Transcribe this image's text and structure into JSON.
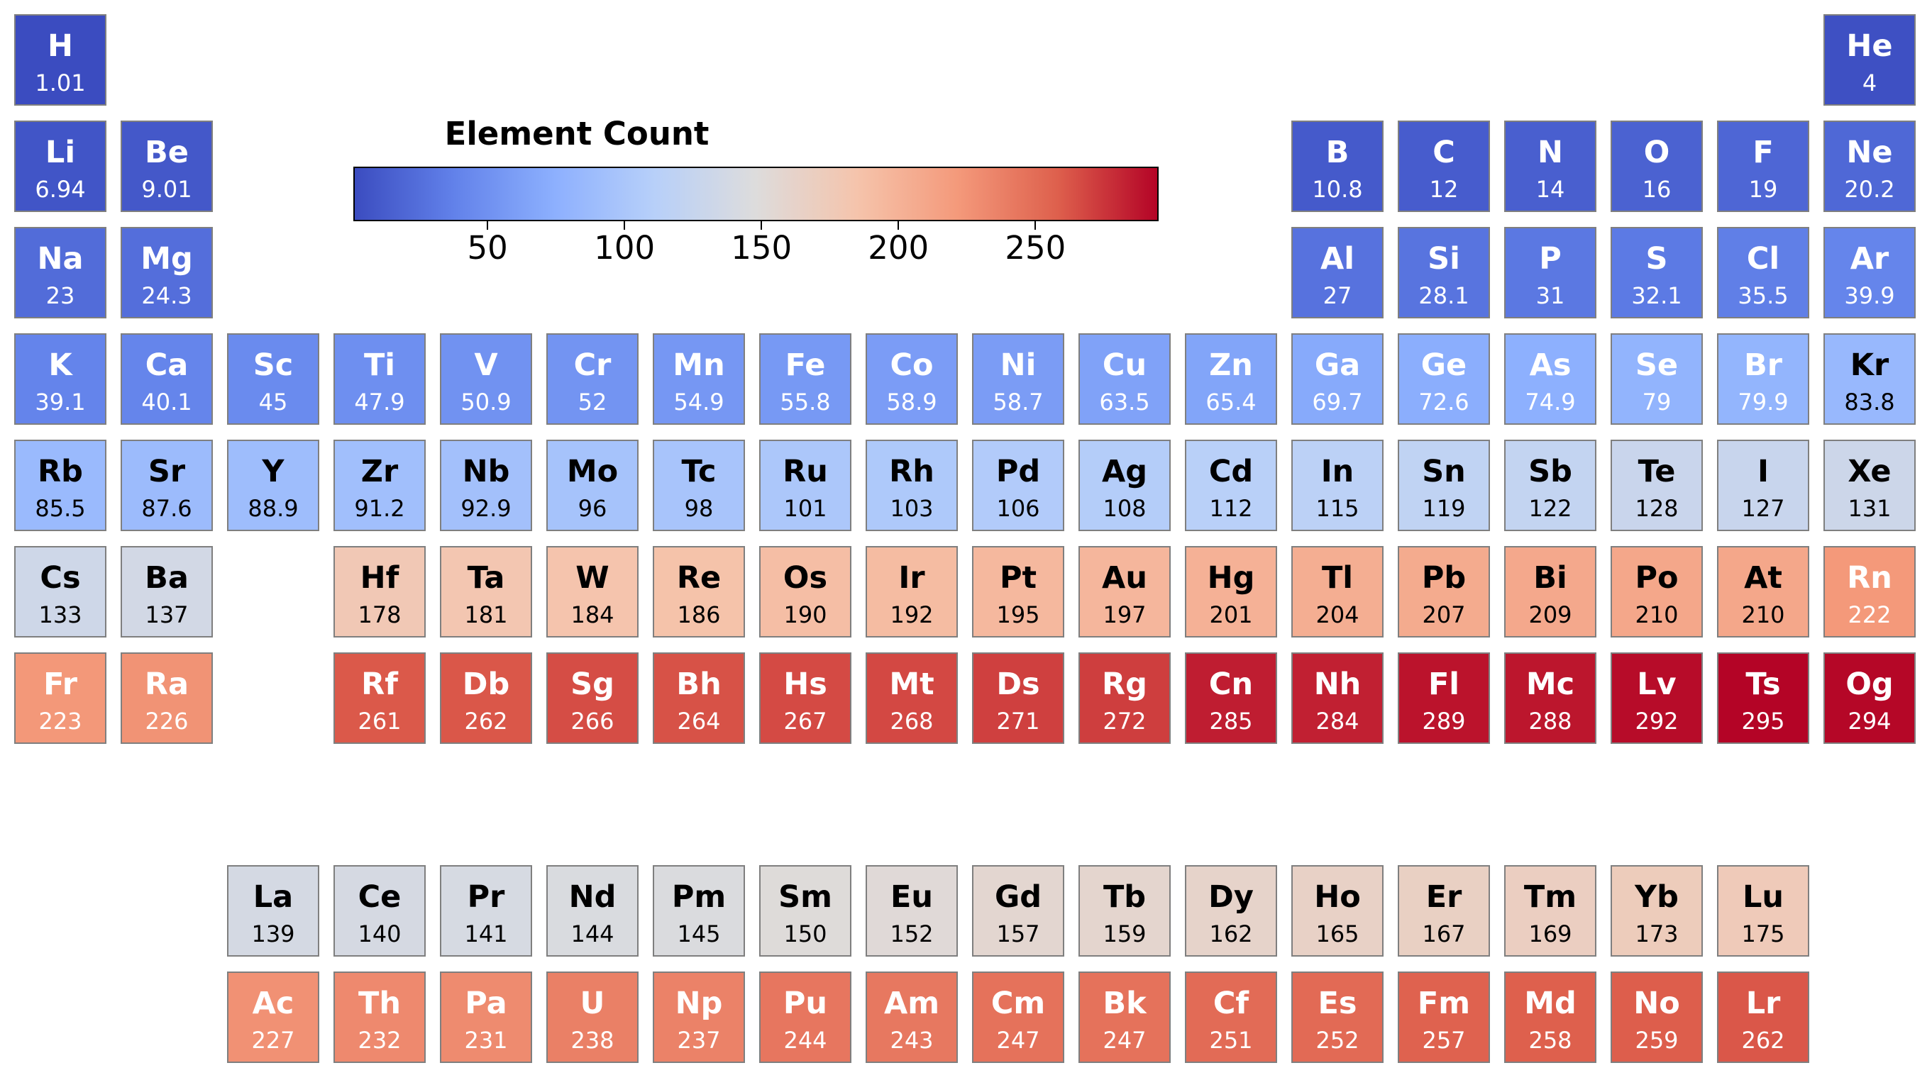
{
  "chart_data": {
    "type": "heatmap",
    "colorbar": {
      "title": "Element Count",
      "min": 1,
      "max": 295,
      "ticks": [
        50,
        100,
        150,
        200,
        250
      ],
      "colormap": "coolwarm",
      "colormap_stops": [
        "#3b4cc0",
        "#6282ea",
        "#8db0fe",
        "#b8d0f9",
        "#dddcdc",
        "#f5c4ac",
        "#f49a7b",
        "#de604d",
        "#b40426"
      ]
    },
    "elements": [
      {
        "symbol": "H",
        "value": "1.01",
        "period": 1,
        "group": 1
      },
      {
        "symbol": "He",
        "value": "4",
        "period": 1,
        "group": 18
      },
      {
        "symbol": "Li",
        "value": "6.94",
        "period": 2,
        "group": 1
      },
      {
        "symbol": "Be",
        "value": "9.01",
        "period": 2,
        "group": 2
      },
      {
        "symbol": "B",
        "value": "10.8",
        "period": 2,
        "group": 13
      },
      {
        "symbol": "C",
        "value": "12",
        "period": 2,
        "group": 14
      },
      {
        "symbol": "N",
        "value": "14",
        "period": 2,
        "group": 15
      },
      {
        "symbol": "O",
        "value": "16",
        "period": 2,
        "group": 16
      },
      {
        "symbol": "F",
        "value": "19",
        "period": 2,
        "group": 17
      },
      {
        "symbol": "Ne",
        "value": "20.2",
        "period": 2,
        "group": 18
      },
      {
        "symbol": "Na",
        "value": "23",
        "period": 3,
        "group": 1
      },
      {
        "symbol": "Mg",
        "value": "24.3",
        "period": 3,
        "group": 2
      },
      {
        "symbol": "Al",
        "value": "27",
        "period": 3,
        "group": 13
      },
      {
        "symbol": "Si",
        "value": "28.1",
        "period": 3,
        "group": 14
      },
      {
        "symbol": "P",
        "value": "31",
        "period": 3,
        "group": 15
      },
      {
        "symbol": "S",
        "value": "32.1",
        "period": 3,
        "group": 16
      },
      {
        "symbol": "Cl",
        "value": "35.5",
        "period": 3,
        "group": 17
      },
      {
        "symbol": "Ar",
        "value": "39.9",
        "period": 3,
        "group": 18
      },
      {
        "symbol": "K",
        "value": "39.1",
        "period": 4,
        "group": 1
      },
      {
        "symbol": "Ca",
        "value": "40.1",
        "period": 4,
        "group": 2
      },
      {
        "symbol": "Sc",
        "value": "45",
        "period": 4,
        "group": 3
      },
      {
        "symbol": "Ti",
        "value": "47.9",
        "period": 4,
        "group": 4
      },
      {
        "symbol": "V",
        "value": "50.9",
        "period": 4,
        "group": 5
      },
      {
        "symbol": "Cr",
        "value": "52",
        "period": 4,
        "group": 6
      },
      {
        "symbol": "Mn",
        "value": "54.9",
        "period": 4,
        "group": 7
      },
      {
        "symbol": "Fe",
        "value": "55.8",
        "period": 4,
        "group": 8
      },
      {
        "symbol": "Co",
        "value": "58.9",
        "period": 4,
        "group": 9
      },
      {
        "symbol": "Ni",
        "value": "58.7",
        "period": 4,
        "group": 10
      },
      {
        "symbol": "Cu",
        "value": "63.5",
        "period": 4,
        "group": 11
      },
      {
        "symbol": "Zn",
        "value": "65.4",
        "period": 4,
        "group": 12
      },
      {
        "symbol": "Ga",
        "value": "69.7",
        "period": 4,
        "group": 13
      },
      {
        "symbol": "Ge",
        "value": "72.6",
        "period": 4,
        "group": 14
      },
      {
        "symbol": "As",
        "value": "74.9",
        "period": 4,
        "group": 15
      },
      {
        "symbol": "Se",
        "value": "79",
        "period": 4,
        "group": 16
      },
      {
        "symbol": "Br",
        "value": "79.9",
        "period": 4,
        "group": 17
      },
      {
        "symbol": "Kr",
        "value": "83.8",
        "period": 4,
        "group": 18
      },
      {
        "symbol": "Rb",
        "value": "85.5",
        "period": 5,
        "group": 1
      },
      {
        "symbol": "Sr",
        "value": "87.6",
        "period": 5,
        "group": 2
      },
      {
        "symbol": "Y",
        "value": "88.9",
        "period": 5,
        "group": 3
      },
      {
        "symbol": "Zr",
        "value": "91.2",
        "period": 5,
        "group": 4
      },
      {
        "symbol": "Nb",
        "value": "92.9",
        "period": 5,
        "group": 5
      },
      {
        "symbol": "Mo",
        "value": "96",
        "period": 5,
        "group": 6
      },
      {
        "symbol": "Tc",
        "value": "98",
        "period": 5,
        "group": 7
      },
      {
        "symbol": "Ru",
        "value": "101",
        "period": 5,
        "group": 8
      },
      {
        "symbol": "Rh",
        "value": "103",
        "period": 5,
        "group": 9
      },
      {
        "symbol": "Pd",
        "value": "106",
        "period": 5,
        "group": 10
      },
      {
        "symbol": "Ag",
        "value": "108",
        "period": 5,
        "group": 11
      },
      {
        "symbol": "Cd",
        "value": "112",
        "period": 5,
        "group": 12
      },
      {
        "symbol": "In",
        "value": "115",
        "period": 5,
        "group": 13
      },
      {
        "symbol": "Sn",
        "value": "119",
        "period": 5,
        "group": 14
      },
      {
        "symbol": "Sb",
        "value": "122",
        "period": 5,
        "group": 15
      },
      {
        "symbol": "Te",
        "value": "128",
        "period": 5,
        "group": 16
      },
      {
        "symbol": "I",
        "value": "127",
        "period": 5,
        "group": 17
      },
      {
        "symbol": "Xe",
        "value": "131",
        "period": 5,
        "group": 18
      },
      {
        "symbol": "Cs",
        "value": "133",
        "period": 6,
        "group": 1
      },
      {
        "symbol": "Ba",
        "value": "137",
        "period": 6,
        "group": 2
      },
      {
        "symbol": "Hf",
        "value": "178",
        "period": 6,
        "group": 4
      },
      {
        "symbol": "Ta",
        "value": "181",
        "period": 6,
        "group": 5
      },
      {
        "symbol": "W",
        "value": "184",
        "period": 6,
        "group": 6
      },
      {
        "symbol": "Re",
        "value": "186",
        "period": 6,
        "group": 7
      },
      {
        "symbol": "Os",
        "value": "190",
        "period": 6,
        "group": 8
      },
      {
        "symbol": "Ir",
        "value": "192",
        "period": 6,
        "group": 9
      },
      {
        "symbol": "Pt",
        "value": "195",
        "period": 6,
        "group": 10
      },
      {
        "symbol": "Au",
        "value": "197",
        "period": 6,
        "group": 11
      },
      {
        "symbol": "Hg",
        "value": "201",
        "period": 6,
        "group": 12
      },
      {
        "symbol": "Tl",
        "value": "204",
        "period": 6,
        "group": 13
      },
      {
        "symbol": "Pb",
        "value": "207",
        "period": 6,
        "group": 14
      },
      {
        "symbol": "Bi",
        "value": "209",
        "period": 6,
        "group": 15
      },
      {
        "symbol": "Po",
        "value": "210",
        "period": 6,
        "group": 16
      },
      {
        "symbol": "At",
        "value": "210",
        "period": 6,
        "group": 17
      },
      {
        "symbol": "Rn",
        "value": "222",
        "period": 6,
        "group": 18
      },
      {
        "symbol": "Fr",
        "value": "223",
        "period": 7,
        "group": 1
      },
      {
        "symbol": "Ra",
        "value": "226",
        "period": 7,
        "group": 2
      },
      {
        "symbol": "Rf",
        "value": "261",
        "period": 7,
        "group": 4
      },
      {
        "symbol": "Db",
        "value": "262",
        "period": 7,
        "group": 5
      },
      {
        "symbol": "Sg",
        "value": "266",
        "period": 7,
        "group": 6
      },
      {
        "symbol": "Bh",
        "value": "264",
        "period": 7,
        "group": 7
      },
      {
        "symbol": "Hs",
        "value": "267",
        "period": 7,
        "group": 8
      },
      {
        "symbol": "Mt",
        "value": "268",
        "period": 7,
        "group": 9
      },
      {
        "symbol": "Ds",
        "value": "271",
        "period": 7,
        "group": 10
      },
      {
        "symbol": "Rg",
        "value": "272",
        "period": 7,
        "group": 11
      },
      {
        "symbol": "Cn",
        "value": "285",
        "period": 7,
        "group": 12
      },
      {
        "symbol": "Nh",
        "value": "284",
        "period": 7,
        "group": 13
      },
      {
        "symbol": "Fl",
        "value": "289",
        "period": 7,
        "group": 14
      },
      {
        "symbol": "Mc",
        "value": "288",
        "period": 7,
        "group": 15
      },
      {
        "symbol": "Lv",
        "value": "292",
        "period": 7,
        "group": 16
      },
      {
        "symbol": "Ts",
        "value": "295",
        "period": 7,
        "group": 17
      },
      {
        "symbol": "Og",
        "value": "294",
        "period": 7,
        "group": 18
      },
      {
        "symbol": "La",
        "value": "139",
        "period": "lanthanide",
        "group": 3
      },
      {
        "symbol": "Ce",
        "value": "140",
        "period": "lanthanide",
        "group": 4
      },
      {
        "symbol": "Pr",
        "value": "141",
        "period": "lanthanide",
        "group": 5
      },
      {
        "symbol": "Nd",
        "value": "144",
        "period": "lanthanide",
        "group": 6
      },
      {
        "symbol": "Pm",
        "value": "145",
        "period": "lanthanide",
        "group": 7
      },
      {
        "symbol": "Sm",
        "value": "150",
        "period": "lanthanide",
        "group": 8
      },
      {
        "symbol": "Eu",
        "value": "152",
        "period": "lanthanide",
        "group": 9
      },
      {
        "symbol": "Gd",
        "value": "157",
        "period": "lanthanide",
        "group": 10
      },
      {
        "symbol": "Tb",
        "value": "159",
        "period": "lanthanide",
        "group": 11
      },
      {
        "symbol": "Dy",
        "value": "162",
        "period": "lanthanide",
        "group": 12
      },
      {
        "symbol": "Ho",
        "value": "165",
        "period": "lanthanide",
        "group": 13
      },
      {
        "symbol": "Er",
        "value": "167",
        "period": "lanthanide",
        "group": 14
      },
      {
        "symbol": "Tm",
        "value": "169",
        "period": "lanthanide",
        "group": 15
      },
      {
        "symbol": "Yb",
        "value": "173",
        "period": "lanthanide",
        "group": 16
      },
      {
        "symbol": "Lu",
        "value": "175",
        "period": "lanthanide",
        "group": 17
      },
      {
        "symbol": "Ac",
        "value": "227",
        "period": "actinide",
        "group": 3
      },
      {
        "symbol": "Th",
        "value": "232",
        "period": "actinide",
        "group": 4
      },
      {
        "symbol": "Pa",
        "value": "231",
        "period": "actinide",
        "group": 5
      },
      {
        "symbol": "U",
        "value": "238",
        "period": "actinide",
        "group": 6
      },
      {
        "symbol": "Np",
        "value": "237",
        "period": "actinide",
        "group": 7
      },
      {
        "symbol": "Pu",
        "value": "244",
        "period": "actinide",
        "group": 8
      },
      {
        "symbol": "Am",
        "value": "243",
        "period": "actinide",
        "group": 9
      },
      {
        "symbol": "Cm",
        "value": "247",
        "period": "actinide",
        "group": 10
      },
      {
        "symbol": "Bk",
        "value": "247",
        "period": "actinide",
        "group": 11
      },
      {
        "symbol": "Cf",
        "value": "251",
        "period": "actinide",
        "group": 12
      },
      {
        "symbol": "Es",
        "value": "252",
        "period": "actinide",
        "group": 13
      },
      {
        "symbol": "Fm",
        "value": "257",
        "period": "actinide",
        "group": 14
      },
      {
        "symbol": "Md",
        "value": "258",
        "period": "actinide",
        "group": 15
      },
      {
        "symbol": "No",
        "value": "259",
        "period": "actinide",
        "group": 16
      },
      {
        "symbol": "Lr",
        "value": "262",
        "period": "actinide",
        "group": 17
      }
    ]
  }
}
